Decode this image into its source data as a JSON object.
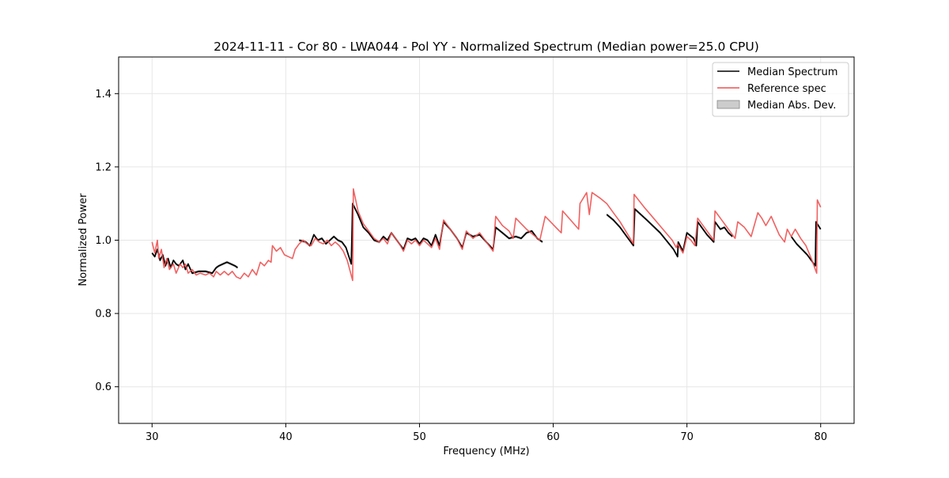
{
  "chart_data": {
    "type": "line",
    "title": "2024-11-11 - Cor 80 - LWA044 - Pol YY - Normalized Spectrum (Median power=25.0 CPU)",
    "xlabel": "Frequency (MHz)",
    "ylabel": "Normalized Power",
    "xlim": [
      27.5,
      82.5
    ],
    "ylim": [
      0.5,
      1.5
    ],
    "xticks": [
      30,
      40,
      50,
      60,
      70,
      80
    ],
    "yticks": [
      0.6,
      0.8,
      1.0,
      1.2,
      1.4
    ],
    "xtick_labels": [
      "30",
      "40",
      "50",
      "60",
      "70",
      "80"
    ],
    "ytick_labels": [
      "0.6",
      "0.8",
      "1.0",
      "1.2",
      "1.4"
    ],
    "grid": true,
    "legend_position": "top-right",
    "legend": [
      "Median Spectrum",
      "Reference spec",
      "Median Abs. Dev."
    ],
    "colors": {
      "median": "#000000",
      "reference": "#f05050",
      "mad": "#b0b0b0"
    },
    "series": [
      {
        "name": "Median Spectrum",
        "segments": [
          [
            [
              30.0,
              0.965
            ],
            [
              30.2,
              0.955
            ],
            [
              30.4,
              0.975
            ],
            [
              30.6,
              0.945
            ],
            [
              30.8,
              0.96
            ],
            [
              31.0,
              0.93
            ],
            [
              31.2,
              0.95
            ],
            [
              31.4,
              0.925
            ],
            [
              31.6,
              0.945
            ],
            [
              31.8,
              0.935
            ],
            [
              32.0,
              0.93
            ],
            [
              32.3,
              0.945
            ],
            [
              32.5,
              0.92
            ],
            [
              32.7,
              0.935
            ],
            [
              33.0,
              0.91
            ],
            [
              33.5,
              0.915
            ],
            [
              34.0,
              0.915
            ],
            [
              34.5,
              0.91
            ],
            [
              34.8,
              0.925
            ],
            [
              35.0,
              0.93
            ],
            [
              35.3,
              0.935
            ],
            [
              35.6,
              0.94
            ],
            [
              35.9,
              0.935
            ],
            [
              36.2,
              0.93
            ],
            [
              36.4,
              0.925
            ]
          ],
          [
            [
              41.0,
              1.0
            ],
            [
              41.5,
              0.995
            ],
            [
              41.8,
              0.985
            ],
            [
              42.1,
              1.015
            ],
            [
              42.4,
              1.0
            ],
            [
              42.7,
              1.005
            ],
            [
              43.0,
              0.99
            ],
            [
              43.3,
              1.0
            ],
            [
              43.6,
              1.01
            ],
            [
              43.9,
              1.0
            ],
            [
              44.2,
              0.995
            ],
            [
              44.5,
              0.98
            ],
            [
              44.9,
              0.935
            ],
            [
              45.0,
              1.1
            ],
            [
              45.4,
              1.07
            ],
            [
              45.8,
              1.035
            ],
            [
              46.2,
              1.02
            ],
            [
              46.6,
              1.0
            ],
            [
              47.0,
              0.995
            ],
            [
              47.3,
              1.01
            ],
            [
              47.6,
              1.0
            ],
            [
              47.9,
              1.02
            ],
            [
              48.2,
              1.005
            ],
            [
              48.5,
              0.99
            ],
            [
              48.8,
              0.975
            ],
            [
              49.1,
              1.005
            ],
            [
              49.4,
              1.0
            ],
            [
              49.7,
              1.005
            ],
            [
              50.0,
              0.99
            ],
            [
              50.3,
              1.005
            ],
            [
              50.6,
              1.0
            ],
            [
              50.9,
              0.985
            ],
            [
              51.2,
              1.015
            ],
            [
              51.5,
              0.985
            ],
            [
              51.8,
              1.05
            ],
            [
              52.3,
              1.03
            ],
            [
              52.8,
              1.005
            ],
            [
              53.2,
              0.98
            ],
            [
              53.5,
              1.02
            ],
            [
              54.0,
              1.01
            ],
            [
              54.5,
              1.015
            ],
            [
              55.0,
              0.995
            ],
            [
              55.5,
              0.975
            ],
            [
              55.7,
              1.035
            ],
            [
              56.2,
              1.02
            ],
            [
              56.7,
              1.005
            ],
            [
              57.2,
              1.01
            ],
            [
              57.6,
              1.005
            ],
            [
              58.0,
              1.02
            ],
            [
              58.4,
              1.025
            ],
            [
              58.8,
              1.005
            ],
            [
              59.2,
              0.995
            ]
          ],
          [
            [
              64.0,
              1.07
            ],
            [
              64.5,
              1.055
            ],
            [
              65.0,
              1.035
            ],
            [
              65.5,
              1.01
            ],
            [
              66.0,
              0.985
            ],
            [
              66.1,
              1.085
            ],
            [
              67.0,
              1.055
            ],
            [
              68.0,
              1.02
            ],
            [
              69.0,
              0.975
            ],
            [
              69.3,
              0.955
            ],
            [
              69.35,
              0.995
            ],
            [
              69.7,
              0.97
            ],
            [
              70.0,
              1.02
            ],
            [
              70.5,
              1.005
            ],
            [
              70.7,
              0.985
            ],
            [
              70.8,
              1.05
            ],
            [
              71.5,
              1.015
            ],
            [
              72.0,
              0.995
            ],
            [
              72.1,
              1.05
            ],
            [
              72.5,
              1.03
            ],
            [
              72.8,
              1.035
            ],
            [
              73.1,
              1.02
            ],
            [
              73.4,
              1.01
            ]
          ],
          [
            [
              77.8,
              1.01
            ],
            [
              78.2,
              0.99
            ],
            [
              78.6,
              0.975
            ],
            [
              79.0,
              0.96
            ],
            [
              79.3,
              0.945
            ],
            [
              79.6,
              0.93
            ],
            [
              79.65,
              1.05
            ],
            [
              80.0,
              1.03
            ]
          ]
        ]
      },
      {
        "name": "Reference spec",
        "segments": [
          [
            [
              30.0,
              0.995
            ],
            [
              30.2,
              0.965
            ],
            [
              30.4,
              1.0
            ],
            [
              30.5,
              0.95
            ],
            [
              30.7,
              0.975
            ],
            [
              30.9,
              0.925
            ],
            [
              31.1,
              0.95
            ],
            [
              31.3,
              0.92
            ],
            [
              31.6,
              0.935
            ],
            [
              31.8,
              0.91
            ],
            [
              32.1,
              0.935
            ],
            [
              32.3,
              0.925
            ],
            [
              32.5,
              0.935
            ],
            [
              32.7,
              0.91
            ],
            [
              33.0,
              0.92
            ],
            [
              33.3,
              0.905
            ],
            [
              33.6,
              0.91
            ],
            [
              34.0,
              0.905
            ],
            [
              34.3,
              0.91
            ],
            [
              34.6,
              0.9
            ],
            [
              34.8,
              0.915
            ],
            [
              35.1,
              0.905
            ],
            [
              35.4,
              0.915
            ],
            [
              35.7,
              0.905
            ],
            [
              36.0,
              0.915
            ],
            [
              36.3,
              0.9
            ],
            [
              36.6,
              0.895
            ],
            [
              36.9,
              0.91
            ],
            [
              37.2,
              0.9
            ],
            [
              37.5,
              0.92
            ],
            [
              37.8,
              0.905
            ],
            [
              38.1,
              0.94
            ],
            [
              38.4,
              0.93
            ],
            [
              38.7,
              0.945
            ],
            [
              38.9,
              0.94
            ],
            [
              39.0,
              0.985
            ],
            [
              39.3,
              0.97
            ],
            [
              39.6,
              0.98
            ],
            [
              39.9,
              0.96
            ],
            [
              40.2,
              0.955
            ],
            [
              40.5,
              0.95
            ],
            [
              40.7,
              0.975
            ],
            [
              41.0,
              0.99
            ],
            [
              41.3,
              1.0
            ],
            [
              41.6,
              0.99
            ],
            [
              41.9,
              0.985
            ],
            [
              42.2,
              1.005
            ],
            [
              42.5,
              0.995
            ],
            [
              42.8,
              0.99
            ],
            [
              43.1,
              1.0
            ],
            [
              43.4,
              0.985
            ],
            [
              43.7,
              0.995
            ],
            [
              44.0,
              0.985
            ],
            [
              44.3,
              0.97
            ],
            [
              44.6,
              0.945
            ],
            [
              45.0,
              0.89
            ],
            [
              45.05,
              1.14
            ],
            [
              45.4,
              1.08
            ],
            [
              45.8,
              1.045
            ],
            [
              46.2,
              1.025
            ],
            [
              46.6,
              1.005
            ],
            [
              47.0,
              0.995
            ],
            [
              47.3,
              1.005
            ],
            [
              47.6,
              0.99
            ],
            [
              47.9,
              1.02
            ],
            [
              48.2,
              1.005
            ],
            [
              48.5,
              0.99
            ],
            [
              48.8,
              0.97
            ],
            [
              49.1,
              1.0
            ],
            [
              49.4,
              0.99
            ],
            [
              49.7,
              1.0
            ],
            [
              50.0,
              0.985
            ],
            [
              50.3,
              1.0
            ],
            [
              50.6,
              0.99
            ],
            [
              50.9,
              0.98
            ],
            [
              51.2,
              1.005
            ],
            [
              51.5,
              0.975
            ],
            [
              51.8,
              1.055
            ],
            [
              52.3,
              1.03
            ],
            [
              52.8,
              1.005
            ],
            [
              53.2,
              0.975
            ],
            [
              53.5,
              1.025
            ],
            [
              54.0,
              1.005
            ],
            [
              54.5,
              1.02
            ],
            [
              55.0,
              0.995
            ],
            [
              55.5,
              0.97
            ],
            [
              55.7,
              1.065
            ],
            [
              56.2,
              1.04
            ],
            [
              56.7,
              1.025
            ],
            [
              57.0,
              1.005
            ],
            [
              57.2,
              1.06
            ],
            [
              57.6,
              1.045
            ],
            [
              58.0,
              1.03
            ],
            [
              58.5,
              1.015
            ],
            [
              59.0,
              1.0
            ],
            [
              59.4,
              1.065
            ],
            [
              59.8,
              1.05
            ],
            [
              60.2,
              1.035
            ],
            [
              60.6,
              1.02
            ],
            [
              60.7,
              1.08
            ],
            [
              61.3,
              1.055
            ],
            [
              61.9,
              1.03
            ],
            [
              62.0,
              1.1
            ],
            [
              62.5,
              1.13
            ],
            [
              62.7,
              1.07
            ],
            [
              62.9,
              1.13
            ],
            [
              63.5,
              1.115
            ],
            [
              64.0,
              1.1
            ],
            [
              64.5,
              1.075
            ],
            [
              65.0,
              1.05
            ],
            [
              65.5,
              1.02
            ],
            [
              66.0,
              0.99
            ],
            [
              66.05,
              1.125
            ],
            [
              66.8,
              1.09
            ],
            [
              67.5,
              1.06
            ],
            [
              68.2,
              1.03
            ],
            [
              68.9,
              1.0
            ],
            [
              69.2,
              0.98
            ],
            [
              69.3,
              0.99
            ],
            [
              69.7,
              0.965
            ],
            [
              70.0,
              1.01
            ],
            [
              70.3,
              1.0
            ],
            [
              70.6,
              0.985
            ],
            [
              70.8,
              1.06
            ],
            [
              71.4,
              1.03
            ],
            [
              72.0,
              1.0
            ],
            [
              72.1,
              1.08
            ],
            [
              72.5,
              1.06
            ],
            [
              72.9,
              1.04
            ],
            [
              73.3,
              1.02
            ],
            [
              73.6,
              1.005
            ],
            [
              73.8,
              1.05
            ],
            [
              74.3,
              1.035
            ],
            [
              74.8,
              1.01
            ],
            [
              75.3,
              1.075
            ],
            [
              75.6,
              1.06
            ],
            [
              75.9,
              1.04
            ],
            [
              76.3,
              1.065
            ],
            [
              76.6,
              1.04
            ],
            [
              76.9,
              1.015
            ],
            [
              77.3,
              0.995
            ],
            [
              77.5,
              1.03
            ],
            [
              77.8,
              1.01
            ],
            [
              78.1,
              1.03
            ],
            [
              78.5,
              1.005
            ],
            [
              78.9,
              0.985
            ],
            [
              79.3,
              0.95
            ],
            [
              79.7,
              0.91
            ],
            [
              79.75,
              1.11
            ],
            [
              80.0,
              1.09
            ]
          ]
        ]
      }
    ]
  }
}
